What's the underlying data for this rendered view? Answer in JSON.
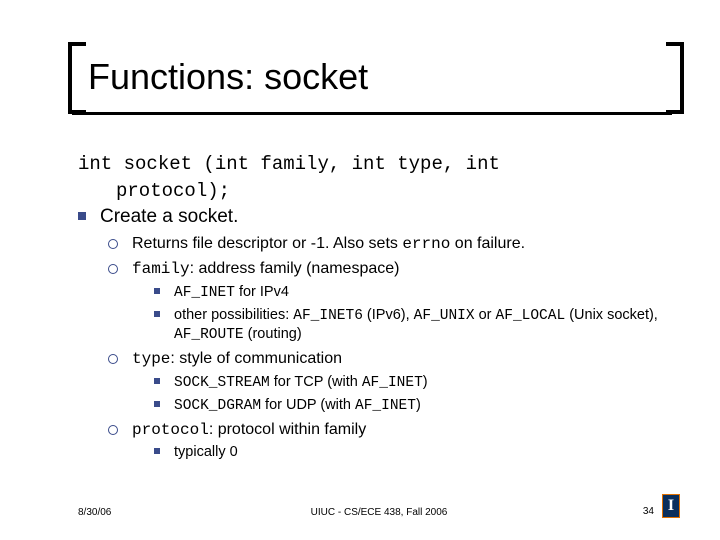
{
  "title": "Functions: socket",
  "decl_line1": "int socket (int family, int type, int",
  "decl_line2": "protocol);",
  "l1_create": "Create a socket.",
  "l2_returns_pre": "Returns file descriptor or -1. Also sets ",
  "l2_returns_code": "errno",
  "l2_returns_post": " on failure.",
  "l2_family_code": "family",
  "l2_family_post": ": address family (namespace)",
  "l3_afinet_code": "AF_INET",
  "l3_afinet_post": " for IPv4",
  "l3_other_pre": "other possibilities: ",
  "l3_other_c1": "AF_INET6",
  "l3_other_m1": " (IPv6), ",
  "l3_other_c2": "AF_UNIX",
  "l3_other_m2": " or ",
  "l3_other_c3": "AF_LOCAL",
  "l3_other_m3": " (Unix socket), ",
  "l3_other_c4": "AF_ROUTE",
  "l3_other_m4": " (routing)",
  "l2_type_code": "type",
  "l2_type_post": ": style of communication",
  "l3_sockstream_code": "SOCK_STREAM",
  "l3_sockstream_mid": " for TCP (with ",
  "l3_sockstream_c2": "AF_INET",
  "l3_sockstream_end": ")",
  "l3_sockdgram_code": "SOCK_DGRAM",
  "l3_sockdgram_mid": " for UDP (with ",
  "l3_sockdgram_c2": "AF_INET",
  "l3_sockdgram_end": ")",
  "l2_protocol_code": "protocol",
  "l2_protocol_post": ": protocol within family",
  "l3_typ0": "typically 0",
  "footer_date": "8/30/06",
  "footer_center": "UIUC - CS/ECE 438, Fall 2006",
  "footer_page": "34",
  "logo_letter": "I",
  "colors": {
    "bullet": "#3a4b8a",
    "logo_bg": "#0a2e5c",
    "logo_border": "#e07000",
    "text": "#000000",
    "bg": "#ffffff"
  }
}
